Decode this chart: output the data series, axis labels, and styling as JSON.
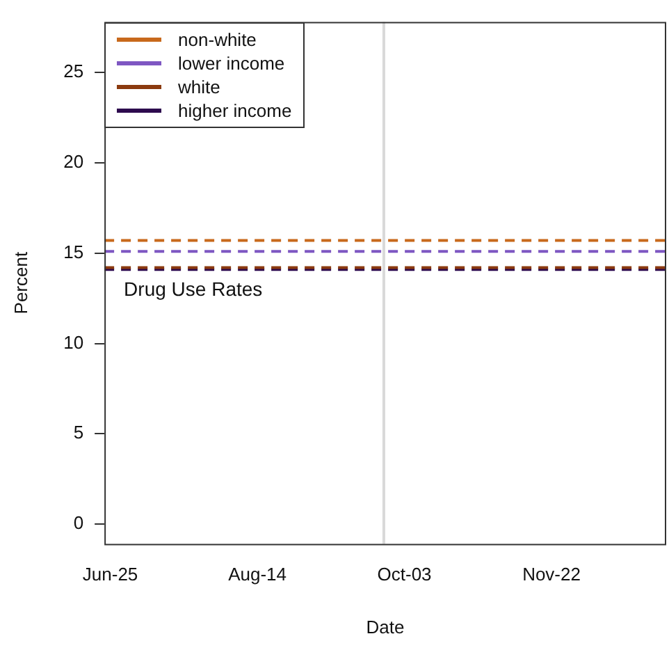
{
  "chart_data": {
    "type": "line",
    "xlabel": "Date",
    "ylabel": "Percent",
    "xlim": [
      "--06-23",
      "--12-31"
    ],
    "xticks": [
      {
        "value": "--06-25",
        "label": "Jun-25"
      },
      {
        "value": "--08-14",
        "label": "Aug-14"
      },
      {
        "value": "--10-03",
        "label": "Oct-03"
      },
      {
        "value": "--11-22",
        "label": "Nov-22"
      }
    ],
    "ylim": [
      -1.1,
      27.8
    ],
    "yticks": [
      0,
      5,
      10,
      15,
      20,
      25
    ],
    "series": [
      {
        "name": "non-white",
        "color": "#c8691c",
        "x": [
          "--06-23",
          "--12-31"
        ],
        "values": [
          15.7,
          15.7
        ]
      },
      {
        "name": "lower income",
        "color": "#7e57c2",
        "x": [
          "--06-23",
          "--12-31"
        ],
        "values": [
          15.1,
          15.1
        ]
      },
      {
        "name": "white",
        "color": "#8b3a0f",
        "x": [
          "--06-23",
          "--12-31"
        ],
        "values": [
          14.2,
          14.2
        ]
      },
      {
        "name": "higher income",
        "color": "#2d0a4e",
        "x": [
          "--06-23",
          "--12-31"
        ],
        "values": [
          14.1,
          14.1
        ]
      }
    ],
    "ref_lines": [
      {
        "axis": "x",
        "value": "--09-26",
        "color": "#d9d9d9"
      }
    ],
    "annotations": [
      "Drug Use Rates"
    ],
    "line_style": "dashed",
    "marker": "none",
    "legend": "top left",
    "grid": false
  }
}
